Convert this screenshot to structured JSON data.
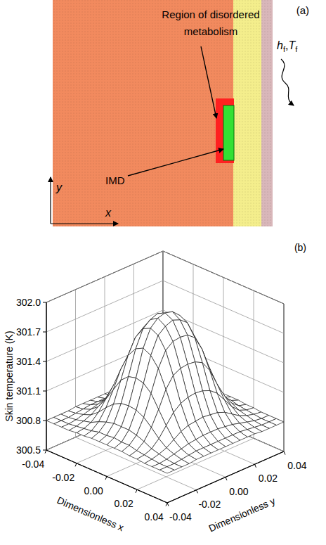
{
  "diagram": {
    "panel_label": "(a)",
    "region_label": "Region of disordered metabolism",
    "device_label": "IMD",
    "boundary_condition": [
      {
        "symbol": "h",
        "subscript": "f"
      },
      {
        "symbol": "T",
        "subscript": "f"
      }
    ],
    "boundary_separator": ",",
    "axes": [
      "x",
      "y"
    ]
  },
  "chart_data": {
    "type": "surface",
    "panel_label": "(b)",
    "xlabel": "Dimensionless x",
    "ylabel": "Dimensionless y",
    "zlabel": "Skin temperature (K)",
    "x": [
      -0.04,
      -0.035,
      -0.03,
      -0.025,
      -0.02,
      -0.015,
      -0.01,
      -0.005,
      0,
      0.005,
      0.01,
      0.015,
      0.02,
      0.025,
      0.03,
      0.035,
      0.04
    ],
    "y": [
      -0.04,
      -0.035,
      -0.03,
      -0.025,
      -0.02,
      -0.015,
      -0.01,
      -0.005,
      0,
      0.005,
      0.01,
      0.015,
      0.02,
      0.025,
      0.03,
      0.035,
      0.04
    ],
    "z": [
      [
        300.8,
        300.8,
        300.8,
        300.8,
        300.81,
        300.81,
        300.82,
        300.82,
        300.82,
        300.82,
        300.82,
        300.81,
        300.81,
        300.8,
        300.8,
        300.8,
        300.8
      ],
      [
        300.8,
        300.8,
        300.8,
        300.81,
        300.82,
        300.83,
        300.85,
        300.85,
        300.86,
        300.85,
        300.85,
        300.83,
        300.82,
        300.81,
        300.8,
        300.8,
        300.8
      ],
      [
        300.8,
        300.8,
        300.81,
        300.83,
        300.85,
        300.89,
        300.92,
        300.94,
        300.94,
        300.94,
        300.92,
        300.89,
        300.85,
        300.83,
        300.81,
        300.8,
        300.8
      ],
      [
        300.8,
        300.81,
        300.83,
        300.86,
        300.92,
        301.0,
        301.07,
        301.11,
        301.12,
        301.11,
        301.07,
        301.0,
        300.92,
        300.86,
        300.83,
        300.81,
        300.8
      ],
      [
        300.81,
        300.82,
        300.85,
        300.91,
        301.02,
        301.15,
        301.28,
        301.35,
        301.37,
        301.35,
        301.28,
        301.15,
        301.02,
        300.91,
        300.85,
        300.82,
        300.81
      ],
      [
        300.81,
        300.83,
        300.87,
        300.96,
        301.12,
        301.32,
        301.5,
        301.6,
        301.64,
        301.6,
        301.5,
        301.32,
        301.12,
        300.96,
        300.87,
        300.83,
        300.81
      ],
      [
        300.81,
        300.83,
        300.88,
        300.99,
        301.18,
        301.43,
        301.65,
        301.77,
        301.81,
        301.77,
        301.65,
        301.43,
        301.18,
        300.99,
        300.88,
        300.83,
        300.81
      ],
      [
        300.81,
        300.83,
        300.89,
        301.0,
        301.21,
        301.47,
        301.71,
        301.83,
        301.88,
        301.83,
        301.71,
        301.47,
        301.21,
        301.0,
        300.89,
        300.83,
        300.81
      ],
      [
        300.81,
        300.83,
        300.89,
        301.01,
        301.22,
        301.48,
        301.72,
        301.86,
        301.9,
        301.86,
        301.72,
        301.48,
        301.22,
        301.01,
        300.89,
        300.83,
        300.81
      ],
      [
        300.81,
        300.83,
        300.89,
        301.0,
        301.21,
        301.47,
        301.71,
        301.83,
        301.88,
        301.83,
        301.71,
        301.47,
        301.21,
        301.0,
        300.89,
        300.83,
        300.81
      ],
      [
        300.81,
        300.83,
        300.88,
        300.99,
        301.18,
        301.43,
        301.65,
        301.77,
        301.81,
        301.77,
        301.65,
        301.43,
        301.18,
        300.99,
        300.88,
        300.83,
        300.81
      ],
      [
        300.81,
        300.83,
        300.87,
        300.96,
        301.12,
        301.32,
        301.5,
        301.6,
        301.64,
        301.6,
        301.5,
        301.32,
        301.12,
        300.96,
        300.87,
        300.83,
        300.81
      ],
      [
        300.81,
        300.82,
        300.85,
        300.91,
        301.02,
        301.15,
        301.28,
        301.35,
        301.37,
        301.35,
        301.28,
        301.15,
        301.02,
        300.91,
        300.85,
        300.82,
        300.81
      ],
      [
        300.8,
        300.81,
        300.83,
        300.86,
        300.92,
        301.0,
        301.07,
        301.11,
        301.12,
        301.11,
        301.07,
        301.0,
        300.92,
        300.86,
        300.83,
        300.81,
        300.8
      ],
      [
        300.8,
        300.8,
        300.81,
        300.83,
        300.85,
        300.89,
        300.92,
        300.94,
        300.94,
        300.94,
        300.92,
        300.89,
        300.85,
        300.83,
        300.81,
        300.8,
        300.8
      ],
      [
        300.8,
        300.8,
        300.8,
        300.81,
        300.82,
        300.83,
        300.85,
        300.85,
        300.86,
        300.85,
        300.85,
        300.83,
        300.82,
        300.81,
        300.8,
        300.8,
        300.8
      ],
      [
        300.8,
        300.8,
        300.8,
        300.8,
        300.81,
        300.81,
        300.82,
        300.82,
        300.82,
        300.82,
        300.82,
        300.81,
        300.81,
        300.8,
        300.8,
        300.8,
        300.8
      ]
    ],
    "xlim": [
      -0.04,
      0.04
    ],
    "ylim": [
      -0.04,
      0.04
    ],
    "zlim": [
      300.5,
      302.0
    ],
    "xticks": [
      -0.04,
      -0.02,
      {
        "value": 0,
        "label": "0.00"
      },
      0.02,
      0.04
    ],
    "yticks": [
      -0.04,
      -0.02,
      {
        "value": 0,
        "label": "0.00"
      },
      0.02,
      0.04
    ],
    "zticks": [
      300.5,
      300.8,
      301.1,
      301.4,
      301.7,
      {
        "value": 302,
        "label": "302.0"
      }
    ],
    "grid": true
  }
}
